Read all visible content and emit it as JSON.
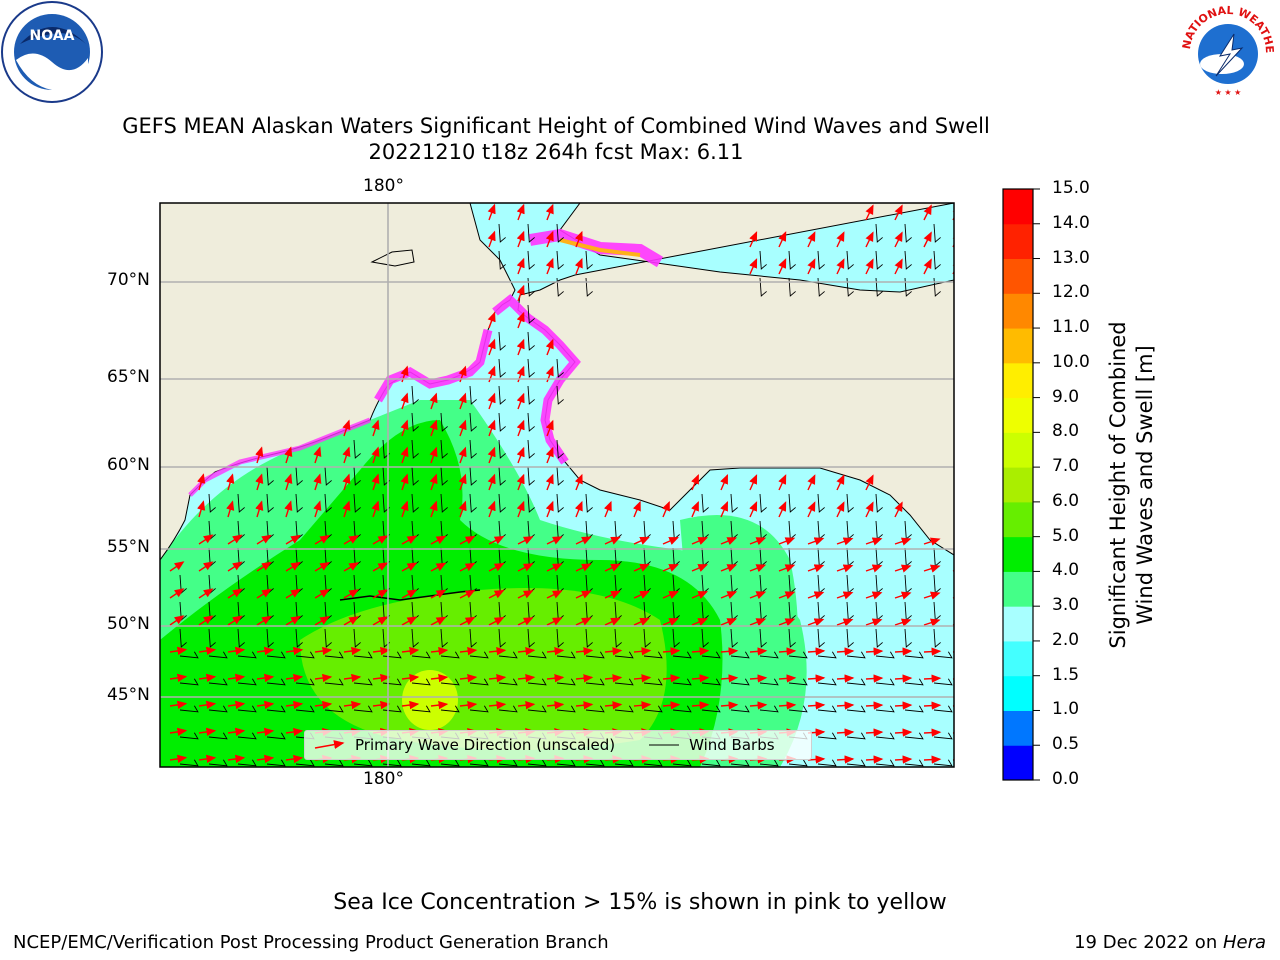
{
  "header": {
    "title_line1": "GEFS MEAN Alaskan Waters Significant Height of Combined Wind Waves and Swell",
    "title_line2": "20221210 t18z 264h fcst   Max: 6.11"
  },
  "logos": {
    "left": "NOAA",
    "right_arc": "NATIONAL WEATHER SERVICE"
  },
  "map": {
    "lon_label_top": "180°",
    "lon_label_bottom": "180°",
    "lat_labels": [
      "70°N",
      "65°N",
      "60°N",
      "55°N",
      "50°N",
      "45°N"
    ],
    "colors": {
      "land": "#efeddc",
      "sea_ice": "#ff33ff",
      "arrow": "#ff0000",
      "barb": "#000000"
    }
  },
  "legend": {
    "wave_direction": "Primary Wave Direction (unscaled)",
    "wind_barbs": "Wind Barbs"
  },
  "colorbar": {
    "label_line1": "Significant Height of Combined",
    "label_line2": "Wind Waves and Swell [m]",
    "ticks": [
      "0.0",
      "0.5",
      "1.0",
      "1.5",
      "2.0",
      "3.0",
      "4.0",
      "5.0",
      "6.0",
      "7.0",
      "8.0",
      "9.0",
      "10.0",
      "11.0",
      "12.0",
      "13.0",
      "14.0",
      "15.0"
    ],
    "colors": [
      "#0000ff",
      "#0077ff",
      "#00ffff",
      "#44ffff",
      "#a8ffff",
      "#44ff88",
      "#00ee00",
      "#66ee00",
      "#aaee00",
      "#ccff00",
      "#eeff00",
      "#ffee00",
      "#ffbb00",
      "#ff8800",
      "#ff5500",
      "#ff2200",
      "#ff0000"
    ]
  },
  "footer": {
    "note": "Sea Ice Concentration > 15% is shown in pink to yellow",
    "left": "NCEP/EMC/Verification Post Processing Product Generation Branch",
    "right_prefix": "19 Dec 2022 on ",
    "right_host": "Hera"
  }
}
